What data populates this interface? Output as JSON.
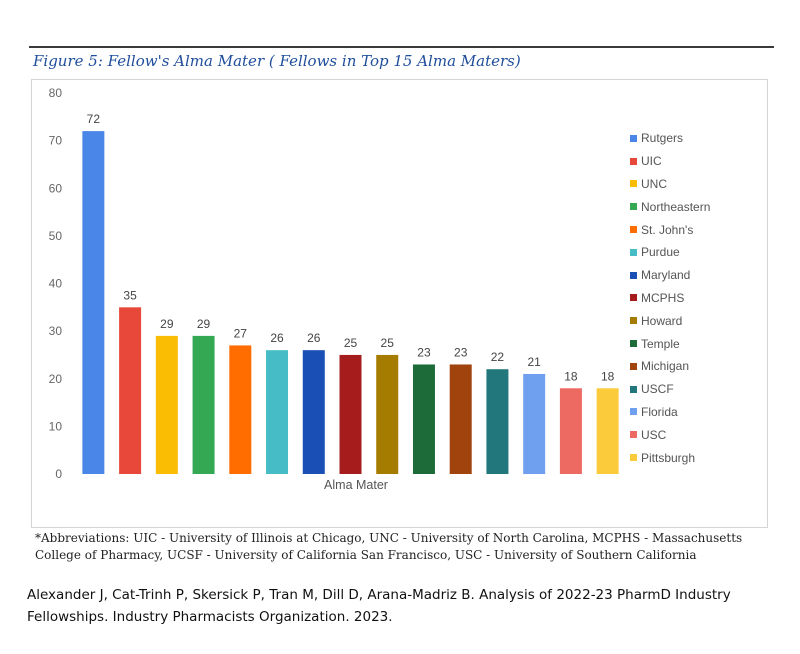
{
  "figure_title": "Figure 5: Fellow's Alma Mater ( Fellows in Top 15 Alma Maters)",
  "footnote": "*Abbreviations: UIC - University of Illinois at Chicago, UNC - University of North Carolina, MCPHS - Massachusetts College of Pharmacy, UCSF - University of California San Francisco, USC - University of Southern California",
  "citation": "Alexander J, Cat-Trinh P, Skersick P, Tran M, Dill D, Arana-Madriz B. Analysis of 2022-23 PharmD Industry Fellowships. Industry Pharmacists Organization. 2023.",
  "chart_data": {
    "type": "bar",
    "title": "",
    "xlabel": "Alma Mater",
    "ylabel": "",
    "ylim": [
      0,
      80
    ],
    "yticks": [
      0,
      10,
      20,
      30,
      40,
      50,
      60,
      70,
      80
    ],
    "grid": false,
    "legend_position": "right",
    "series": [
      {
        "name": "Rutgers",
        "value": 72,
        "color": "#4a86e8"
      },
      {
        "name": "UIC",
        "value": 35,
        "color": "#e8483a"
      },
      {
        "name": "UNC",
        "value": 29,
        "color": "#fbbc04"
      },
      {
        "name": "Northeastern",
        "value": 29,
        "color": "#34a853"
      },
      {
        "name": "St. John's",
        "value": 27,
        "color": "#ff6d01"
      },
      {
        "name": "Purdue",
        "value": 26,
        "color": "#46bdc6"
      },
      {
        "name": "Maryland",
        "value": 26,
        "color": "#1a4fb5"
      },
      {
        "name": "MCPHS",
        "value": 25,
        "color": "#a61c1c"
      },
      {
        "name": "Howard",
        "value": 25,
        "color": "#a67c00"
      },
      {
        "name": "Temple",
        "value": 23,
        "color": "#1e6b3a"
      },
      {
        "name": "Michigan",
        "value": 23,
        "color": "#a0430d"
      },
      {
        "name": "USCF",
        "value": 22,
        "color": "#21777b"
      },
      {
        "name": "Florida",
        "value": 21,
        "color": "#6fa0ef"
      },
      {
        "name": "USC",
        "value": 18,
        "color": "#ec6a62"
      },
      {
        "name": "Pittsburgh",
        "value": 18,
        "color": "#fccb3c"
      }
    ]
  }
}
